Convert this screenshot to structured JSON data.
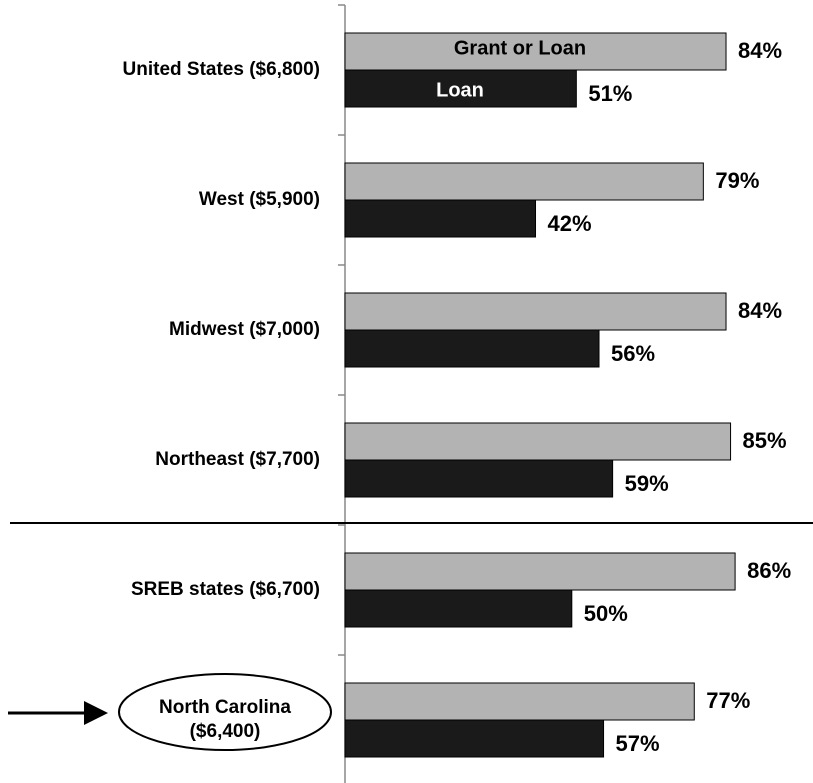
{
  "chart_data": {
    "type": "bar",
    "orientation": "horizontal",
    "categories": [
      "United States ($6,800)",
      "West ($5,900)",
      "Midwest ($7,000)",
      "Northeast ($7,700)",
      "SREB states ($6,700)",
      "North Carolina ($6,400)"
    ],
    "series": [
      {
        "name": "Grant or Loan",
        "color": "#b3b3b3",
        "values": [
          84,
          79,
          84,
          85,
          86,
          77
        ],
        "value_labels": [
          "84%",
          "79%",
          "84%",
          "85%",
          "86%",
          "77%"
        ]
      },
      {
        "name": "Loan",
        "color": "#1a1a1a",
        "values": [
          51,
          42,
          56,
          59,
          50,
          57
        ],
        "value_labels": [
          "51%",
          "42%",
          "56%",
          "59%",
          "50%",
          "57%"
        ]
      }
    ],
    "xlim": [
      0,
      100
    ]
  }
}
